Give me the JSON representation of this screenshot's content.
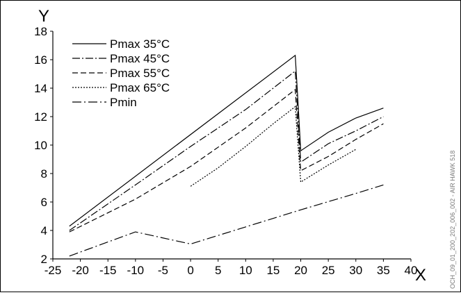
{
  "chart_data": {
    "type": "line",
    "title": "",
    "xlabel": "X",
    "ylabel": "Y",
    "xlim": [
      -25,
      40
    ],
    "ylim": [
      2,
      18
    ],
    "x_ticks": [
      -25,
      -20,
      -15,
      -10,
      -5,
      0,
      5,
      10,
      15,
      20,
      25,
      30,
      35,
      40
    ],
    "y_ticks": [
      2,
      4,
      6,
      8,
      10,
      12,
      14,
      16,
      18
    ],
    "grid": false,
    "legend_position": "top-left",
    "series": [
      {
        "name": "Pmax 35°C",
        "dash": "",
        "x": [
          -22,
          19,
          19.5,
          20,
          25,
          30,
          35
        ],
        "y": [
          4.3,
          16.3,
          13.0,
          9.6,
          10.9,
          11.9,
          12.6
        ]
      },
      {
        "name": "Pmax 45°C",
        "dash": "11,3,2,3",
        "x": [
          -22,
          -10,
          0,
          10,
          19,
          19.5,
          20,
          25,
          30,
          35
        ],
        "y": [
          4.0,
          7.2,
          9.9,
          12.5,
          15.2,
          12.0,
          8.8,
          10.1,
          11.0,
          12.0
        ]
      },
      {
        "name": "Pmax 55°C",
        "dash": "8,4",
        "x": [
          -22,
          -10,
          0,
          10,
          19,
          19.5,
          20,
          25,
          30,
          35
        ],
        "y": [
          3.9,
          6.2,
          8.5,
          11.2,
          13.9,
          11.0,
          8.2,
          9.2,
          10.4,
          11.5
        ]
      },
      {
        "name": "Pmax 65°C",
        "dash": "2,2",
        "x": [
          0,
          5,
          10,
          15,
          19,
          19.5,
          20,
          25,
          30
        ],
        "y": [
          7.1,
          8.4,
          9.9,
          11.5,
          12.7,
          10.0,
          7.4,
          8.6,
          9.7
        ]
      },
      {
        "name": "Pmin",
        "dash": "13,4,2,4",
        "x": [
          -22,
          -10,
          0,
          10,
          20,
          30,
          35
        ],
        "y": [
          2.2,
          3.9,
          3.05,
          4.25,
          5.45,
          6.6,
          7.2
        ]
      }
    ]
  },
  "side_note": "OCH_09_01_200_202_006_002 - AIR HAWK 518"
}
